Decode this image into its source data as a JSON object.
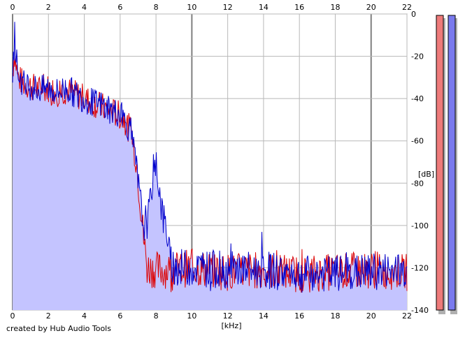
{
  "chart_data": {
    "type": "line",
    "xlabel": "[kHz]",
    "ylabel": "[dB]",
    "xlim": [
      0,
      22
    ],
    "ylim": [
      -140,
      0
    ],
    "x_ticks": [
      0,
      2,
      4,
      6,
      8,
      10,
      12,
      14,
      16,
      18,
      20,
      22
    ],
    "y_ticks": [
      0,
      -20,
      -40,
      -60,
      -80,
      -100,
      -120,
      -140
    ],
    "x_tick_labels": [
      "0",
      "2",
      "4",
      "6",
      "8",
      "10",
      "12",
      "14",
      "16",
      "18",
      "20",
      "22"
    ],
    "y_tick_labels": [
      "0",
      "-20",
      "-40",
      "-60",
      "-80",
      "-100",
      "-120",
      "-140"
    ],
    "grid": true,
    "series": [
      {
        "color": "#dd0000",
        "role": "left-channel",
        "x": [
          0,
          0.1,
          0.3,
          0.6,
          1.0,
          1.5,
          2.0,
          2.5,
          3.0,
          3.5,
          4.0,
          4.5,
          5.0,
          5.5,
          6.0,
          6.3,
          6.6,
          6.9,
          7.1,
          7.3,
          7.5,
          8.0,
          8.5,
          9,
          10,
          12,
          14,
          16,
          18,
          20,
          22
        ],
        "y": [
          -28,
          -18,
          -30,
          -33,
          -34,
          -36,
          -35,
          -37,
          -36,
          -38,
          -40,
          -42,
          -44,
          -46,
          -48,
          -52,
          -55,
          -70,
          -86,
          -105,
          -120,
          -121,
          -121,
          -121,
          -120,
          -122,
          -121,
          -123,
          -122,
          -121,
          -122
        ]
      },
      {
        "color": "#0000cc",
        "role": "right-channel",
        "x": [
          0,
          0.1,
          0.3,
          0.6,
          1.0,
          1.5,
          2.0,
          2.5,
          3.0,
          3.5,
          4.0,
          4.5,
          5.0,
          5.5,
          6.0,
          6.3,
          6.6,
          6.9,
          7.1,
          7.3,
          7.6,
          7.8,
          8.0,
          8.2,
          8.4,
          8.6,
          8.8,
          9.2,
          10,
          12,
          14,
          16,
          18,
          20,
          22
        ],
        "y": [
          -28,
          -12,
          -28,
          -33,
          -34,
          -36,
          -35,
          -37,
          -35,
          -38,
          -40,
          -42,
          -43,
          -46,
          -47,
          -51,
          -56,
          -72,
          -88,
          -100,
          -96,
          -78,
          -68,
          -84,
          -97,
          -102,
          -118,
          -120,
          -120,
          -121,
          -121,
          -123,
          -123,
          -122,
          -121
        ]
      }
    ],
    "fill_color": "#c4c4ff",
    "meter_colors": [
      "#ee7a7a",
      "#7a7aee"
    ]
  },
  "footer": {
    "credit": "created by Hub Audio Tools"
  }
}
